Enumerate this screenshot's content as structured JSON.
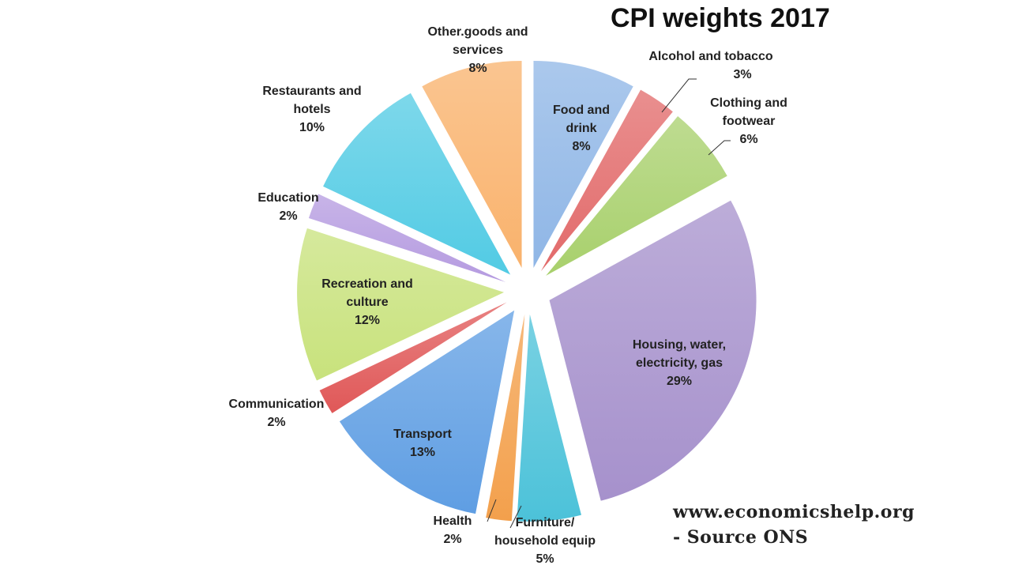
{
  "chart_data": {
    "type": "pie",
    "title": "CPI weights 2017",
    "unit": "%",
    "slices": [
      {
        "label": "Food and drink",
        "value": 8,
        "color": "#8fb6e6"
      },
      {
        "label": "Alcohol and tobacco",
        "value": 3,
        "color": "#e26a6a"
      },
      {
        "label": "Clothing and footwear",
        "value": 6,
        "color": "#a8d06c"
      },
      {
        "label": "Housing, water, electricity, gas",
        "value": 29,
        "color": "#a691cc"
      },
      {
        "label": "Furniture/ household equip",
        "value": 5,
        "color": "#4cc2d9"
      },
      {
        "label": "Health",
        "value": 2,
        "color": "#f3a04c"
      },
      {
        "label": "Transport",
        "value": 13,
        "color": "#5f9ee3"
      },
      {
        "label": "Communication",
        "value": 2,
        "color": "#e05858"
      },
      {
        "label": "Recreation and culture",
        "value": 12,
        "color": "#c8e27c"
      },
      {
        "label": "Education",
        "value": 2,
        "color": "#b59be0"
      },
      {
        "label": "Restaurants and hotels",
        "value": 10,
        "color": "#52cbe4"
      },
      {
        "label": "Other.goods and services",
        "value": 8,
        "color": "#f9b26c"
      }
    ],
    "display_labels": [
      {
        "name": "Food and\ndrink",
        "pct": "8%"
      },
      {
        "name": "Alcohol and tobacco",
        "pct": "3%"
      },
      {
        "name": "Clothing and\nfootwear",
        "pct": "6%"
      },
      {
        "name": "Housing, water,\nelectricity, gas",
        "pct": "29%"
      },
      {
        "name": "Furniture/\nhousehold equip",
        "pct": "5%"
      },
      {
        "name": "Health",
        "pct": "2%"
      },
      {
        "name": "Transport",
        "pct": "13%"
      },
      {
        "name": "Communication",
        "pct": "2%"
      },
      {
        "name": "Recreation and\nculture",
        "pct": "12%"
      },
      {
        "name": "Education",
        "pct": "2%"
      },
      {
        "name": "Restaurants and\nhotels",
        "pct": "10%"
      },
      {
        "name": "Other.goods and\nservices",
        "pct": "8%"
      }
    ],
    "legend": "none"
  },
  "source": {
    "line1": "www.economicshelp.org",
    "line2": "- Source ONS"
  }
}
